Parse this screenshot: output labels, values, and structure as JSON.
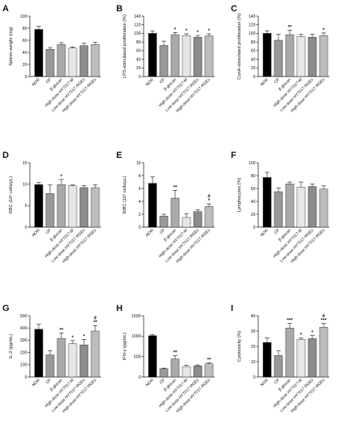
{
  "chart_data": [
    {
      "panel": "A",
      "type": "bar",
      "ylabel": "Spleen weight (mg)",
      "categories": [
        "NOR",
        "CP",
        "β-glucan",
        "High-dose HY7017-M",
        "Low-dose HY7017-RGEs",
        "High-dose HY7017-RGEs"
      ],
      "values": [
        78,
        45,
        53,
        47,
        51,
        53
      ],
      "errors": [
        5,
        3,
        3,
        2,
        4,
        4
      ],
      "significance": [
        "",
        "",
        "",
        "",
        "",
        ""
      ],
      "yticks": [
        "0",
        "20",
        "40",
        "60",
        "80",
        "100"
      ],
      "ylim": [
        0,
        100
      ]
    },
    {
      "panel": "B",
      "type": "bar",
      "ylabel": "LPS-stimulated proliferation (%)",
      "categories": [
        "NOR",
        "CP",
        "β-glucan",
        "High-dose HY7017-M",
        "Low-dose HY7017-RGEs",
        "High-dose HY7017-RGEs"
      ],
      "values": [
        100,
        72,
        97,
        95,
        91,
        94
      ],
      "errors": [
        6,
        10,
        5,
        4,
        4,
        5
      ],
      "significance": [
        "",
        "",
        "*",
        "*",
        "*",
        "*"
      ],
      "yticks": [
        "0",
        "20",
        "40",
        "60",
        "80",
        "100",
        "120",
        "140"
      ],
      "ylim": [
        0,
        140
      ]
    },
    {
      "panel": "C",
      "type": "bar",
      "ylabel": "ConA-stimulated proliferation (%)",
      "categories": [
        "NOR",
        "CP",
        "β-glucan",
        "High-dose HY7017-M",
        "Low-dose HY7017-RGEs",
        "High-dose HY7017-RGEs"
      ],
      "values": [
        100,
        84,
        97,
        92,
        91,
        95
      ],
      "errors": [
        6,
        14,
        10,
        6,
        7,
        6
      ],
      "significance": [
        "",
        "",
        "**",
        "",
        "",
        "*"
      ],
      "yticks": [
        "0",
        "20",
        "40",
        "60",
        "80",
        "100",
        "120",
        "140"
      ],
      "ylim": [
        0,
        140
      ]
    },
    {
      "panel": "D",
      "type": "bar",
      "ylabel": "RBC (10⁶ cells/μL)",
      "categories": [
        "NOR",
        "CP",
        "β-glucan",
        "High-dose HY7017-M",
        "Low-dose HY7017-RGEs",
        "High-dose HY7017-RGEs"
      ],
      "values": [
        9.9,
        7.8,
        9.9,
        9.6,
        9.2,
        9.2
      ],
      "errors": [
        0.5,
        2.0,
        1.2,
        0.2,
        0.5,
        0.7
      ],
      "significance": [
        "",
        "",
        "*",
        "",
        "",
        ""
      ],
      "yticks": [
        "0",
        "5",
        "10",
        "15"
      ],
      "ylim": [
        0,
        15
      ]
    },
    {
      "panel": "E",
      "type": "bar",
      "ylabel": "WBC (10³ cells/μL)",
      "categories": [
        "NOR",
        "CP",
        "β-glucan",
        "High-dose HY7017-M",
        "Low-dose HY7017-RGEs",
        "High-dose HY7017-RGEs"
      ],
      "values": [
        6.8,
        1.7,
        4.5,
        1.5,
        2.4,
        3.2
      ],
      "errors": [
        1.0,
        0.3,
        1.2,
        0.6,
        0.3,
        0.4
      ],
      "significance": [
        "",
        "",
        "**",
        "",
        "",
        "#\n*"
      ],
      "yticks": [
        "0",
        "2",
        "4",
        "6",
        "8",
        "10"
      ],
      "ylim": [
        0,
        10
      ]
    },
    {
      "panel": "F",
      "type": "bar",
      "ylabel": "Lymphocytes (%)",
      "categories": [
        "NOR",
        "CP",
        "β-glucan",
        "High-dose HY7017-M",
        "Low-dose HY7017-RGEs",
        "High-dose HY7017-RGEs"
      ],
      "values": [
        77,
        55,
        67,
        62,
        63,
        59
      ],
      "errors": [
        8,
        6,
        3,
        8,
        4,
        5
      ],
      "significance": [
        "",
        "",
        "",
        "",
        "",
        ""
      ],
      "yticks": [
        "0",
        "20",
        "40",
        "60",
        "80",
        "100"
      ],
      "ylim": [
        0,
        100
      ]
    },
    {
      "panel": "G",
      "type": "bar",
      "ylabel": "IL-2 (pg/mL)",
      "categories": [
        "NOR",
        "CP",
        "β-glucan",
        "High-dose HY7017-M",
        "Low-dose HY7017-RGEs",
        "High-dose HY7017-RGEs"
      ],
      "values": [
        390,
        180,
        315,
        272,
        262,
        375
      ],
      "errors": [
        40,
        35,
        45,
        25,
        45,
        45
      ],
      "significance": [
        "",
        "",
        "**",
        "*",
        "*",
        "#\n**"
      ],
      "yticks": [
        "0",
        "100",
        "200",
        "300",
        "400",
        "500"
      ],
      "ylim": [
        0,
        500
      ]
    },
    {
      "panel": "H",
      "type": "bar",
      "ylabel": "IFN-γ (pg/mL)",
      "categories": [
        "NOR",
        "CP",
        "β-glucan",
        "High-dose HY7017-M",
        "Low-dose HY7017-RGEs",
        "High-dose HY7017-RGEs"
      ],
      "values": [
        1010,
        200,
        440,
        255,
        270,
        320
      ],
      "errors": [
        25,
        15,
        80,
        30,
        25,
        25
      ],
      "significance": [
        "",
        "",
        "**",
        "",
        "",
        "**"
      ],
      "yticks": [
        "0",
        "500",
        "1000",
        "1500"
      ],
      "ylim": [
        0,
        1500
      ]
    },
    {
      "panel": "I",
      "type": "bar",
      "ylabel": "Cytotoxicity (%)",
      "categories": [
        "NOR",
        "CP",
        "β-glucan",
        "High-dose HY7017-M",
        "Low-dose HY7017-RGEs",
        "High-dose HY7017-RGEs"
      ],
      "values": [
        22.5,
        14,
        32,
        24.5,
        25,
        32.5
      ],
      "errors": [
        3,
        3,
        3,
        1,
        2,
        2.5
      ],
      "significance": [
        "",
        "",
        "***",
        "*",
        "*",
        "#\n***"
      ],
      "yticks": [
        "0",
        "10",
        "20",
        "30",
        "40"
      ],
      "ylim": [
        0,
        40
      ]
    }
  ],
  "colors": {
    "bar_fills": [
      "#000000",
      "#999999",
      "#aaaaaa",
      "#e6e6e6",
      "#8c8c8c",
      "#bdbdbd"
    ],
    "axis": "#111111"
  }
}
